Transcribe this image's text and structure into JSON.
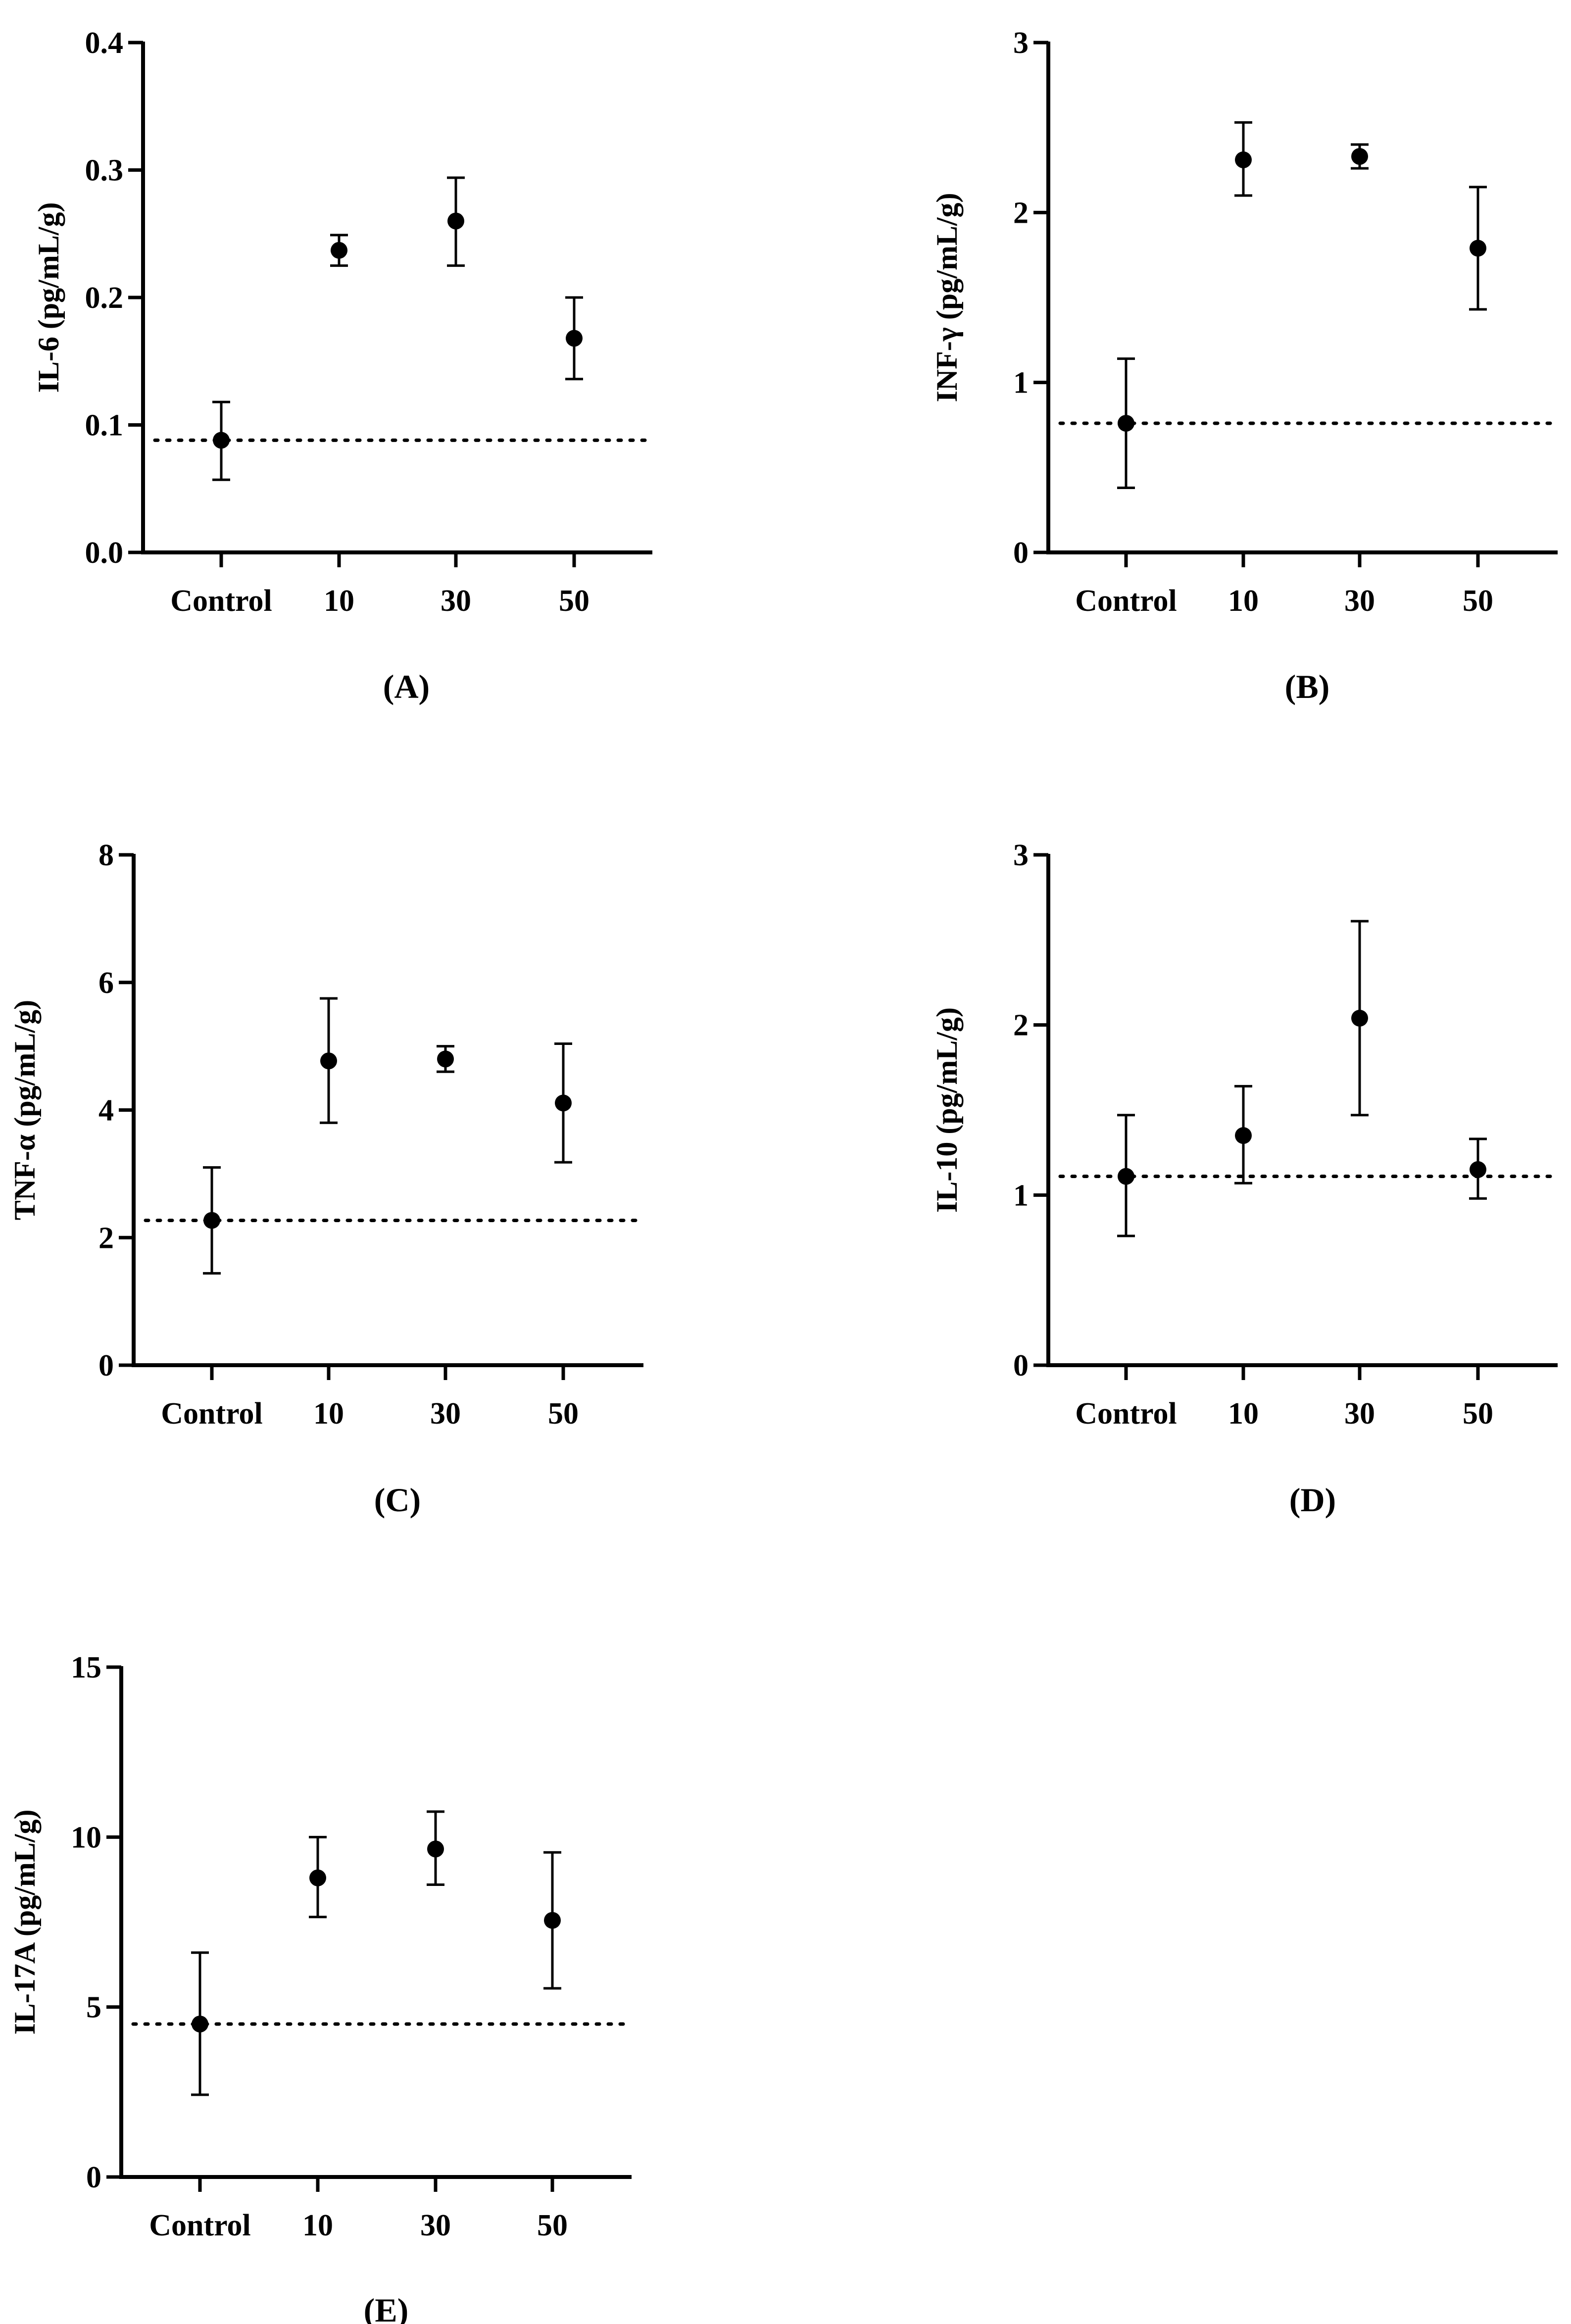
{
  "colors": {
    "ink": "#000000",
    "background": "#ffffff"
  },
  "chart_data": [
    {
      "type": "scatter",
      "panel_label": "(A)",
      "ylabel": "IL-6 (pg/mL/g)",
      "categories": [
        "Control",
        "10",
        "30",
        "50"
      ],
      "ylim": [
        0,
        0.4
      ],
      "yticks": [
        0.0,
        0.1,
        0.2,
        0.3,
        0.4
      ],
      "ytick_labels": [
        "0.0",
        "0.1",
        "0.2",
        "0.3",
        "0.4"
      ],
      "series": [
        {
          "name": "mean ± error",
          "values": [
            0.088,
            0.237,
            0.26,
            0.168
          ],
          "err_low": [
            0.057,
            0.225,
            0.225,
            0.136
          ],
          "err_high": [
            0.118,
            0.249,
            0.294,
            0.2
          ]
        }
      ],
      "reference_line": 0.088,
      "grid": false
    },
    {
      "type": "scatter",
      "panel_label": "(B)",
      "ylabel": "INF-γ (pg/mL/g)",
      "categories": [
        "Control",
        "10",
        "30",
        "50"
      ],
      "ylim": [
        0,
        3
      ],
      "yticks": [
        0,
        1,
        2,
        3
      ],
      "ytick_labels": [
        "0",
        "1",
        "2",
        "3"
      ],
      "series": [
        {
          "name": "mean ± error",
          "values": [
            0.76,
            2.31,
            2.33,
            1.79
          ],
          "err_low": [
            0.38,
            2.1,
            2.26,
            1.43
          ],
          "err_high": [
            1.14,
            2.53,
            2.4,
            2.15
          ]
        }
      ],
      "reference_line": 0.76,
      "grid": false
    },
    {
      "type": "scatter",
      "panel_label": "(C)",
      "ylabel": "TNF-α (pg/mL/g)",
      "categories": [
        "Control",
        "10",
        "30",
        "50"
      ],
      "ylim": [
        0,
        8
      ],
      "yticks": [
        0,
        2,
        4,
        6,
        8
      ],
      "ytick_labels": [
        "0",
        "2",
        "4",
        "6",
        "8"
      ],
      "series": [
        {
          "name": "mean ± error",
          "values": [
            2.27,
            4.77,
            4.8,
            4.11
          ],
          "err_low": [
            1.44,
            3.8,
            4.6,
            3.18
          ],
          "err_high": [
            3.1,
            5.75,
            5.0,
            5.04
          ]
        }
      ],
      "reference_line": 2.27,
      "grid": false
    },
    {
      "type": "scatter",
      "panel_label": "(D)",
      "ylabel": "IL-10 (pg/mL/g)",
      "categories": [
        "Control",
        "10",
        "30",
        "50"
      ],
      "ylim": [
        0,
        3
      ],
      "yticks": [
        0,
        1,
        2,
        3
      ],
      "ytick_labels": [
        "0",
        "1",
        "2",
        "3"
      ],
      "series": [
        {
          "name": "mean ± error",
          "values": [
            1.11,
            1.35,
            2.04,
            1.15
          ],
          "err_low": [
            0.76,
            1.07,
            1.47,
            0.98
          ],
          "err_high": [
            1.47,
            1.64,
            2.61,
            1.33
          ]
        }
      ],
      "reference_line": 1.11,
      "grid": false
    },
    {
      "type": "scatter",
      "panel_label": "(E)",
      "ylabel": "IL-17A (pg/mL/g)",
      "categories": [
        "Control",
        "10",
        "30",
        "50"
      ],
      "ylim": [
        0,
        15
      ],
      "yticks": [
        0,
        5,
        10,
        15
      ],
      "ytick_labels": [
        "0",
        "5",
        "10",
        "15"
      ],
      "series": [
        {
          "name": "mean ± error",
          "values": [
            4.5,
            8.8,
            9.65,
            7.55
          ],
          "err_low": [
            2.42,
            7.65,
            8.6,
            5.55
          ],
          "err_high": [
            6.6,
            10.0,
            10.75,
            9.55
          ]
        }
      ],
      "reference_line": 4.5,
      "grid": false
    }
  ]
}
